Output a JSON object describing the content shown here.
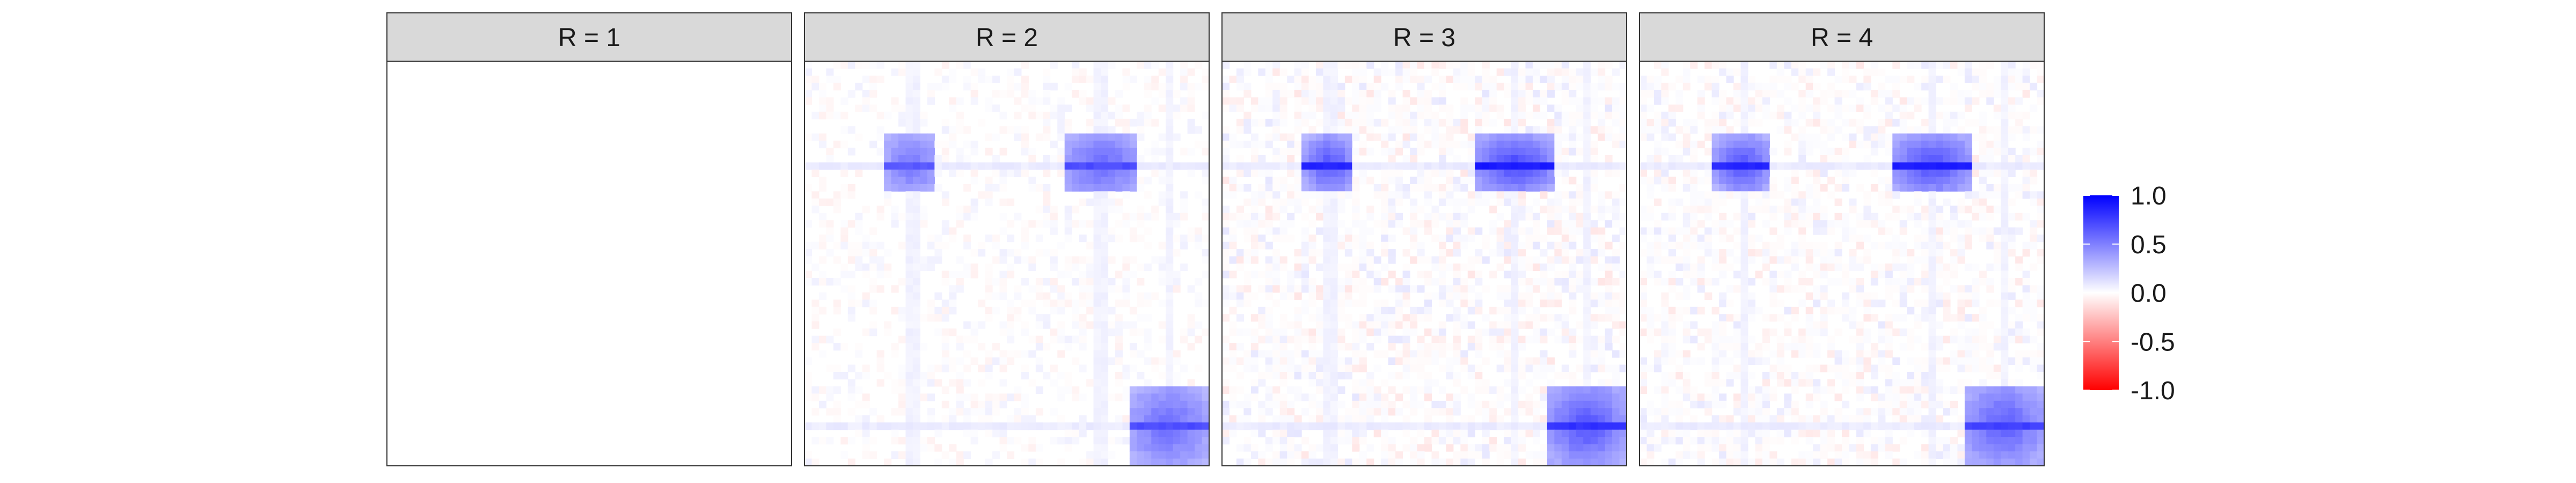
{
  "chart_data": {
    "type": "heatmap",
    "title": "",
    "xlabel": "",
    "ylabel": "",
    "facet_labels": [
      "R = 1",
      "R = 2",
      "R = 3",
      "R = 4"
    ],
    "value_range": [
      -1.0,
      1.0
    ],
    "colorscale": {
      "low": "#ff0000",
      "mid": "#ffffff",
      "high": "#0000ff"
    },
    "legend": {
      "position": "right",
      "ticks": [
        {
          "value": 1.0,
          "label": "1.0"
        },
        {
          "value": 0.5,
          "label": "0.5"
        },
        {
          "value": 0.0,
          "label": "0.0"
        },
        {
          "value": -0.5,
          "label": "-0.5"
        },
        {
          "value": -1.0,
          "label": "-1.0"
        }
      ]
    },
    "grid": false,
    "panels": [
      {
        "label": "R = 1",
        "blocks": []
      },
      {
        "label": "R = 2",
        "blocks": [
          {
            "rows": [
              0.18,
              0.33
            ],
            "cols": [
              0.2,
              0.33
            ],
            "peak": 0.55,
            "edge": 0.3,
            "line": 0.65
          },
          {
            "rows": [
              0.18,
              0.33
            ],
            "cols": [
              0.64,
              0.83
            ],
            "peak": 0.6,
            "edge": 0.32,
            "line": 0.7
          },
          {
            "rows": [
              0.8,
              1.0
            ],
            "cols": [
              0.8,
              1.0
            ],
            "peak": 0.6,
            "edge": 0.3,
            "line": 0.7
          }
        ],
        "noise": 0.06
      },
      {
        "label": "R = 3",
        "blocks": [
          {
            "rows": [
              0.18,
              0.33
            ],
            "cols": [
              0.2,
              0.33
            ],
            "peak": 0.7,
            "edge": 0.3,
            "line": 0.85
          },
          {
            "rows": [
              0.18,
              0.33
            ],
            "cols": [
              0.62,
              0.83
            ],
            "peak": 0.75,
            "edge": 0.32,
            "line": 0.9
          },
          {
            "rows": [
              0.8,
              1.0
            ],
            "cols": [
              0.8,
              1.0
            ],
            "peak": 0.7,
            "edge": 0.32,
            "line": 0.8
          }
        ],
        "noise": 0.1
      },
      {
        "label": "R = 4",
        "blocks": [
          {
            "rows": [
              0.18,
              0.33
            ],
            "cols": [
              0.18,
              0.33
            ],
            "peak": 0.7,
            "edge": 0.3,
            "line": 0.85
          },
          {
            "rows": [
              0.18,
              0.33
            ],
            "cols": [
              0.62,
              0.83
            ],
            "peak": 0.72,
            "edge": 0.32,
            "line": 0.88
          },
          {
            "rows": [
              0.8,
              1.0
            ],
            "cols": [
              0.8,
              1.0
            ],
            "peak": 0.65,
            "edge": 0.32,
            "line": 0.75
          }
        ],
        "noise": 0.09
      }
    ]
  }
}
